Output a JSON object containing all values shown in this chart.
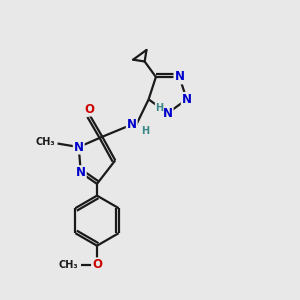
{
  "bg_color": "#e8e8e8",
  "bond_color": "#1a1a1a",
  "bond_width": 1.6,
  "N_color": "#0000cc",
  "O_color": "#cc0000",
  "H_color": "#3a8888",
  "fs": 8.5,
  "fss": 7.0,
  "xlim": [
    0,
    10
  ],
  "ylim": [
    0,
    10
  ]
}
